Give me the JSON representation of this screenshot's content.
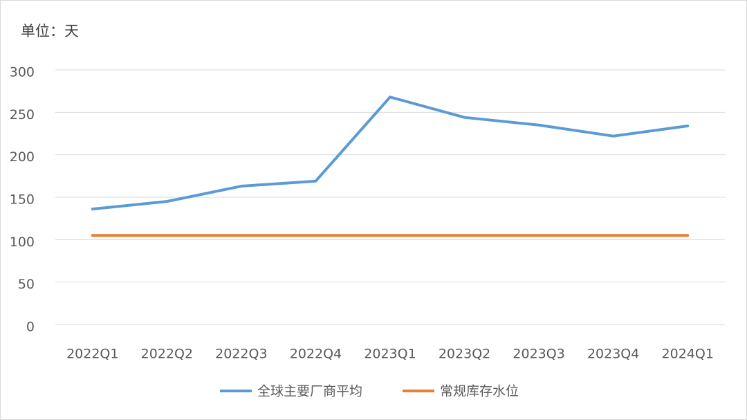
{
  "chart_data": {
    "type": "line",
    "title": "单位：天",
    "categories": [
      "2022Q1",
      "2022Q2",
      "2022Q3",
      "2022Q4",
      "2023Q1",
      "2023Q2",
      "2023Q3",
      "2023Q4",
      "2024Q1"
    ],
    "series": [
      {
        "name": "全球主要厂商平均",
        "color": "#5b9bd5",
        "values": [
          136,
          145,
          163,
          169,
          268,
          244,
          235,
          222,
          234
        ]
      },
      {
        "name": "常规库存水位",
        "color": "#ed7d31",
        "values": [
          105,
          105,
          105,
          105,
          105,
          105,
          105,
          105,
          105
        ]
      }
    ],
    "ylim": [
      0,
      300
    ],
    "yticks": [
      0,
      50,
      100,
      150,
      200,
      250,
      300
    ],
    "grid": true,
    "legend": "bottom"
  }
}
